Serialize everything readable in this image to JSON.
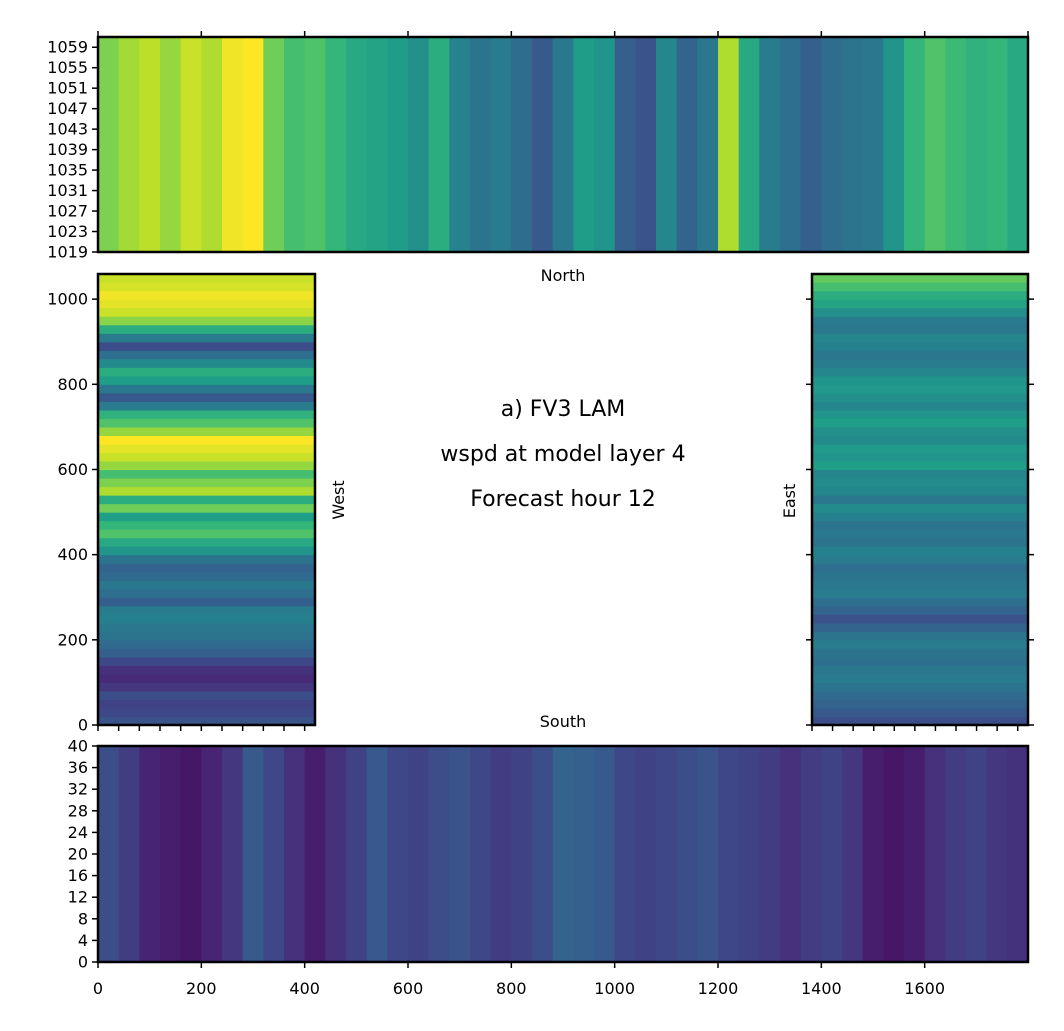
{
  "chart_data": [
    {
      "id": "north",
      "type": "heatmap",
      "colormap": "viridis",
      "side_label": "North",
      "x_range": [
        0,
        1800
      ],
      "y_range": [
        1019,
        1061
      ],
      "y_ticks": [
        1019,
        1023,
        1027,
        1031,
        1035,
        1039,
        1043,
        1047,
        1051,
        1055,
        1059
      ],
      "orientation": "columns",
      "profile_step": 40,
      "profile": [
        0.8,
        0.86,
        0.9,
        0.84,
        0.92,
        0.88,
        0.98,
        1.0,
        0.78,
        0.7,
        0.72,
        0.66,
        0.6,
        0.58,
        0.55,
        0.5,
        0.62,
        0.45,
        0.38,
        0.42,
        0.35,
        0.28,
        0.4,
        0.55,
        0.52,
        0.3,
        0.26,
        0.46,
        0.32,
        0.4,
        0.88,
        0.6,
        0.42,
        0.36,
        0.3,
        0.35,
        0.38,
        0.4,
        0.52,
        0.66,
        0.72,
        0.68,
        0.64,
        0.66,
        0.6,
        0.5
      ]
    },
    {
      "id": "west",
      "type": "heatmap",
      "colormap": "viridis",
      "side_label": "West",
      "x_range": [
        0,
        420
      ],
      "y_range": [
        0,
        1059
      ],
      "y_ticks": [
        0,
        200,
        400,
        600,
        800,
        1000
      ],
      "orientation": "rows",
      "profile_step": 20,
      "profile": [
        0.26,
        0.22,
        0.2,
        0.24,
        0.16,
        0.12,
        0.14,
        0.22,
        0.3,
        0.34,
        0.38,
        0.4,
        0.44,
        0.42,
        0.3,
        0.36,
        0.4,
        0.34,
        0.32,
        0.38,
        0.52,
        0.6,
        0.72,
        0.66,
        0.56,
        0.78,
        0.62,
        0.88,
        0.8,
        0.7,
        0.84,
        0.92,
        0.96,
        1.0,
        0.84,
        0.72,
        0.64,
        0.42,
        0.28,
        0.4,
        0.56,
        0.62,
        0.48,
        0.36,
        0.24,
        0.42,
        0.62,
        0.82,
        0.92,
        0.96,
        0.98,
        0.94,
        0.92
      ]
    },
    {
      "id": "east",
      "type": "heatmap",
      "colormap": "viridis",
      "side_label": "East",
      "x_range": [
        0,
        420
      ],
      "y_range": [
        0,
        1059
      ],
      "y_ticks": [
        0,
        200,
        400,
        600,
        800,
        1000
      ],
      "orientation": "rows",
      "profile_step": 20,
      "profile": [
        0.24,
        0.28,
        0.32,
        0.34,
        0.38,
        0.42,
        0.4,
        0.36,
        0.38,
        0.42,
        0.38,
        0.32,
        0.26,
        0.32,
        0.36,
        0.42,
        0.4,
        0.38,
        0.36,
        0.42,
        0.44,
        0.38,
        0.4,
        0.38,
        0.44,
        0.48,
        0.4,
        0.46,
        0.48,
        0.46,
        0.56,
        0.52,
        0.54,
        0.48,
        0.5,
        0.56,
        0.52,
        0.46,
        0.5,
        0.54,
        0.52,
        0.46,
        0.42,
        0.4,
        0.44,
        0.46,
        0.4,
        0.42,
        0.5,
        0.58,
        0.62,
        0.7,
        0.76
      ]
    },
    {
      "id": "south",
      "type": "heatmap",
      "colormap": "viridis",
      "side_label": "South",
      "x_range": [
        0,
        1800
      ],
      "x_ticks": [
        0,
        200,
        400,
        600,
        800,
        1000,
        1200,
        1400,
        1600
      ],
      "y_range": [
        0,
        40
      ],
      "y_ticks": [
        0,
        4,
        8,
        12,
        16,
        20,
        24,
        28,
        32,
        36,
        40
      ],
      "orientation": "columns",
      "profile_step": 40,
      "profile": [
        0.24,
        0.18,
        0.1,
        0.08,
        0.06,
        0.1,
        0.16,
        0.28,
        0.22,
        0.14,
        0.08,
        0.14,
        0.2,
        0.28,
        0.22,
        0.2,
        0.24,
        0.26,
        0.22,
        0.18,
        0.2,
        0.24,
        0.32,
        0.3,
        0.28,
        0.22,
        0.2,
        0.22,
        0.24,
        0.26,
        0.22,
        0.2,
        0.18,
        0.14,
        0.18,
        0.2,
        0.16,
        0.08,
        0.06,
        0.08,
        0.14,
        0.18,
        0.2,
        0.16,
        0.14,
        0.14
      ]
    }
  ],
  "annotation": {
    "title": "a) FV3 LAM",
    "variable": "wspd at model layer 4",
    "forecast": "Forecast hour 12"
  }
}
